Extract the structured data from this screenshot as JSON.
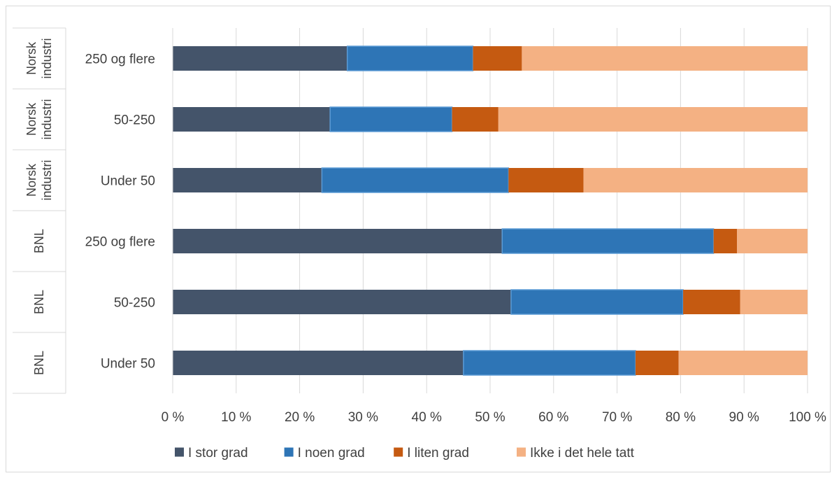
{
  "chart_data": {
    "type": "bar",
    "orientation": "horizontal",
    "stacked": "percent",
    "rows": [
      {
        "group": [
          "Norsk",
          "industri"
        ],
        "category": "250 og flere",
        "values": [
          27.5,
          19.8,
          7.7,
          45.0
        ]
      },
      {
        "group": [
          "Norsk",
          "industri"
        ],
        "category": "50-250",
        "values": [
          24.8,
          19.2,
          7.3,
          48.7
        ]
      },
      {
        "group": [
          "Norsk",
          "industri"
        ],
        "category": "Under 50",
        "values": [
          23.5,
          29.4,
          11.8,
          35.3
        ]
      },
      {
        "group": [
          "BNL"
        ],
        "category": "250 og flere",
        "values": [
          51.9,
          33.3,
          3.7,
          11.1
        ]
      },
      {
        "group": [
          "BNL"
        ],
        "category": "50-250",
        "values": [
          53.3,
          27.1,
          9.0,
          10.6
        ]
      },
      {
        "group": [
          "BNL"
        ],
        "category": "Under 50",
        "values": [
          45.8,
          27.1,
          6.8,
          20.3
        ]
      }
    ],
    "series": [
      {
        "name": "I stor grad",
        "color": "#44546a"
      },
      {
        "name": "I noen grad",
        "color": "#2e75b6"
      },
      {
        "name": "I  liten grad",
        "color": "#c55a11"
      },
      {
        "name": "Ikke i det hele tatt",
        "color": "#f4b183"
      }
    ],
    "xlim": [
      0,
      100
    ],
    "xticks": [
      "0 %",
      "10 %",
      "20 %",
      "30 %",
      "40 %",
      "50 %",
      "60 %",
      "70 %",
      "80 %",
      "90 %",
      "100 %"
    ],
    "grid": true,
    "legend_position": "bottom"
  }
}
